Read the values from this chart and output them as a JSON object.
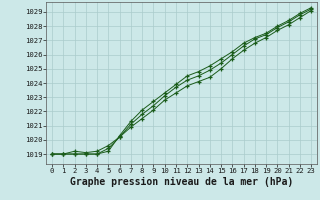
{
  "title": "Graphe pression niveau de la mer (hPa)",
  "background_color": "#cce8e8",
  "grid_color": "#aacccc",
  "line_color": "#1a5c1a",
  "marker_color": "#1a5c1a",
  "xlim": [
    -0.5,
    23.5
  ],
  "ylim": [
    1018.3,
    1029.7
  ],
  "yticks": [
    1019,
    1020,
    1021,
    1022,
    1023,
    1024,
    1025,
    1026,
    1027,
    1028,
    1029
  ],
  "xticks": [
    0,
    1,
    2,
    3,
    4,
    5,
    6,
    7,
    8,
    9,
    10,
    11,
    12,
    13,
    14,
    15,
    16,
    17,
    18,
    19,
    20,
    21,
    22,
    23
  ],
  "hours": [
    0,
    1,
    2,
    3,
    4,
    5,
    6,
    7,
    8,
    9,
    10,
    11,
    12,
    13,
    14,
    15,
    16,
    17,
    18,
    19,
    20,
    21,
    22,
    23
  ],
  "series1": [
    1019.0,
    1019.0,
    1019.2,
    1019.1,
    1019.2,
    1019.6,
    1020.2,
    1020.9,
    1021.5,
    1022.1,
    1022.8,
    1023.3,
    1023.8,
    1024.1,
    1024.4,
    1025.0,
    1025.7,
    1026.3,
    1026.8,
    1027.2,
    1027.7,
    1028.1,
    1028.6,
    1029.1
  ],
  "series2": [
    1019.0,
    1019.0,
    1019.0,
    1019.0,
    1019.0,
    1019.4,
    1020.2,
    1021.1,
    1021.8,
    1022.4,
    1023.1,
    1023.7,
    1024.2,
    1024.5,
    1024.9,
    1025.4,
    1026.0,
    1026.6,
    1027.1,
    1027.4,
    1027.9,
    1028.3,
    1028.8,
    1029.2
  ],
  "series3": [
    1019.0,
    1019.0,
    1019.0,
    1019.0,
    1019.0,
    1019.2,
    1020.3,
    1021.3,
    1022.1,
    1022.7,
    1023.3,
    1023.9,
    1024.5,
    1024.8,
    1025.2,
    1025.7,
    1026.2,
    1026.8,
    1027.2,
    1027.5,
    1028.0,
    1028.4,
    1028.9,
    1029.3
  ],
  "title_fontsize": 7.0,
  "tick_fontsize": 5.2
}
